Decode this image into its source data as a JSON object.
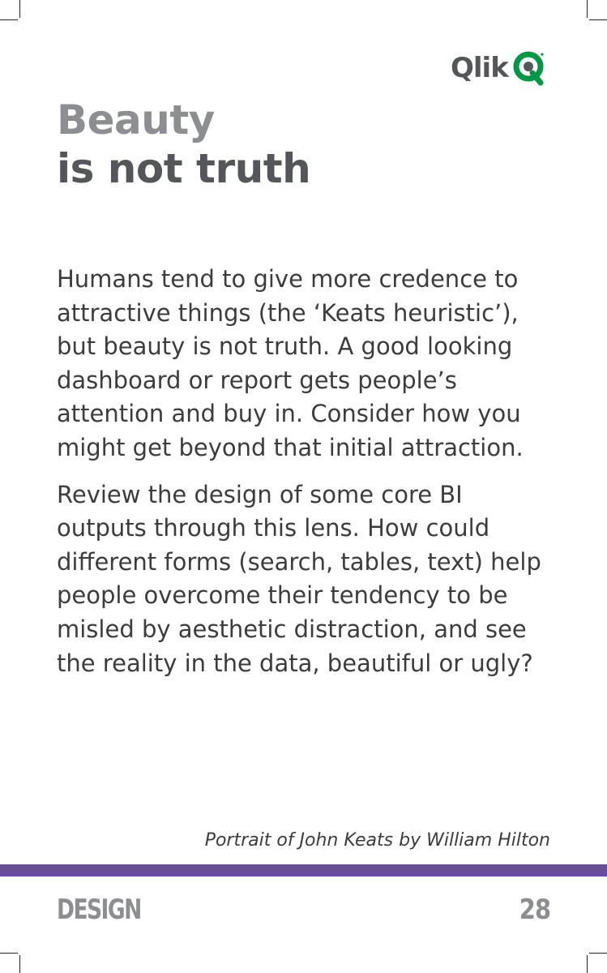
{
  "brand": {
    "name": "Qlik",
    "mark_color": "#009845",
    "text_color": "#54565a"
  },
  "title": {
    "line1": "Beauty",
    "line2": "is not truth"
  },
  "body": {
    "paragraphs": [
      "Humans tend to give more credence to attractive things (the ‘Keats heuristic’), but beauty is not truth. A good looking dashboard or report gets people’s attention and buy in. Consider how you might get beyond that initial attraction.",
      "Review the design of some core BI outputs through this lens. How could different forms (search, tables, text) help people overcome their tendency to be misled by aesthetic distraction, and see the reality in the data, beautiful or ugly?"
    ]
  },
  "caption": "Portrait of John Keats by William Hilton",
  "footer": {
    "section": "DESIGN",
    "page_number": "28",
    "bar_color": "#6a4c9c"
  }
}
